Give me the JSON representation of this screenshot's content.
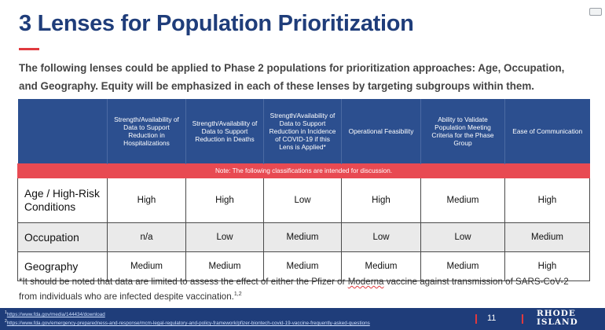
{
  "title": "3 Lenses for Population Prioritization",
  "intro": "The following lenses could be applied to Phase 2 populations for prioritization approaches: Age, Occupation, and Geography. Equity will be emphasized in each of these lenses by targeting subgroups within them.",
  "table": {
    "headers": [
      "",
      "Strength/Availability of Data to Support Reduction in Hospitalizations",
      "Strength/Availability of Data to Support Reduction in Deaths",
      "Strength/Availability of Data to Support Reduction in Incidence of COVID-19 if this Lens is Applied*",
      "Operational Feasibility",
      "Ability to Validate Population Meeting Criteria for the Phase Group",
      "Ease of Communication"
    ],
    "note": "Note: The following classifications are intended for discussion.",
    "rows": [
      {
        "label": "Age / High-Risk Conditions",
        "values": [
          "High",
          "High",
          "Low",
          "High",
          "Medium",
          "High"
        ]
      },
      {
        "label": "Occupation",
        "values": [
          "n/a",
          "Low",
          "Medium",
          "Low",
          "Low",
          "Medium"
        ]
      },
      {
        "label": "Geography",
        "values": [
          "Medium",
          "Medium",
          "Medium",
          "Medium",
          "Medium",
          "High"
        ]
      }
    ]
  },
  "footnote": {
    "text_before": "*It should be noted that data are limited to assess the effect of either the Pfizer or ",
    "underlined_word": "Moderna",
    "text_after": " vaccine against transmission of SARS-CoV-2 from individuals who are infected despite vaccination.",
    "refs_marker": "1,2"
  },
  "footer": {
    "references": [
      {
        "marker": "1",
        "url": "https://www.fda.gov/media/144434/download"
      },
      {
        "marker": "2",
        "url": "https://www.fda.gov/emergency-preparedness-and-response/mcm-legal-regulatory-and-policy-framework/pfizer-biontech-covid-19-vaccine-frequently-asked-questions"
      }
    ],
    "page_number": "11",
    "logo_line1": "RHODE",
    "logo_line2": "ISLAND"
  },
  "colors": {
    "title": "#1f3d7a",
    "header_bg": "#2c4f8f",
    "note_bg": "#e84a52",
    "accent": "#e0393e",
    "footer_bg": "#1f3d7a",
    "band_bg": "#eaeaea"
  }
}
